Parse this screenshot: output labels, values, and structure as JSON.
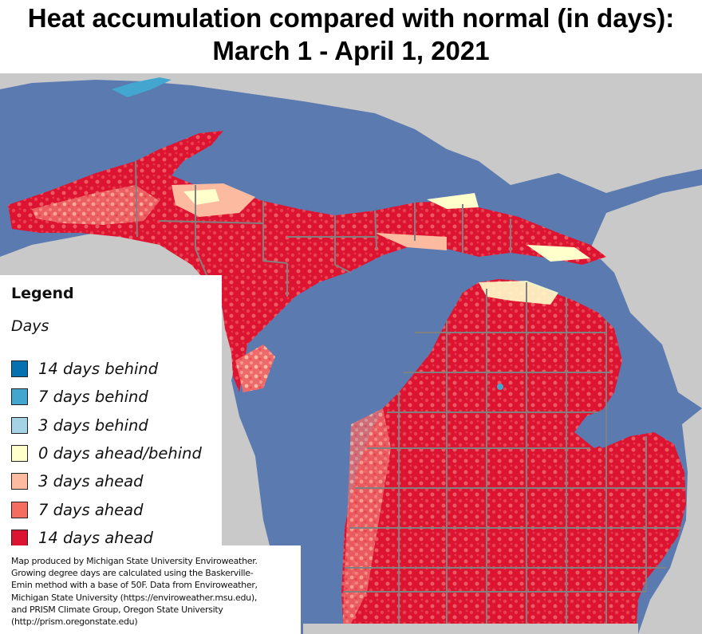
{
  "title": {
    "line1": "Heat accumulation compared with normal (in days):",
    "line2": "March 1 - April 1, 2021"
  },
  "legend": {
    "heading": "Legend",
    "subheading": "Days",
    "items": [
      {
        "label": "14 days behind",
        "color": "#0571b0"
      },
      {
        "label": "7 days behind",
        "color": "#43a6cf"
      },
      {
        "label": "3 days behind",
        "color": "#a6d2e6"
      },
      {
        "label": "0 days ahead/behind",
        "color": "#ffffcc"
      },
      {
        "label": "3 days ahead",
        "color": "#fcbba1"
      },
      {
        "label": "7 days ahead",
        "color": "#f46d5e"
      },
      {
        "label": "14 days ahead",
        "color": "#dc1431"
      }
    ]
  },
  "credit": {
    "lines": [
      "Map produced by Michigan State University Enviroweather.",
      "Growing degree days are calculated using the Baskerville-",
      "Emin method with a base of 50F.  Data from Enviroweather,",
      "Michigan State University (https://enviroweather.msu.edu),",
      "and PRISM Climate Group, Oregon State University",
      "(http://prism.oregonstate.edu)"
    ]
  },
  "map_colors": {
    "water": "#5b7ab0",
    "land_outside": "#c9c9c9",
    "county_lines": "#808080"
  }
}
